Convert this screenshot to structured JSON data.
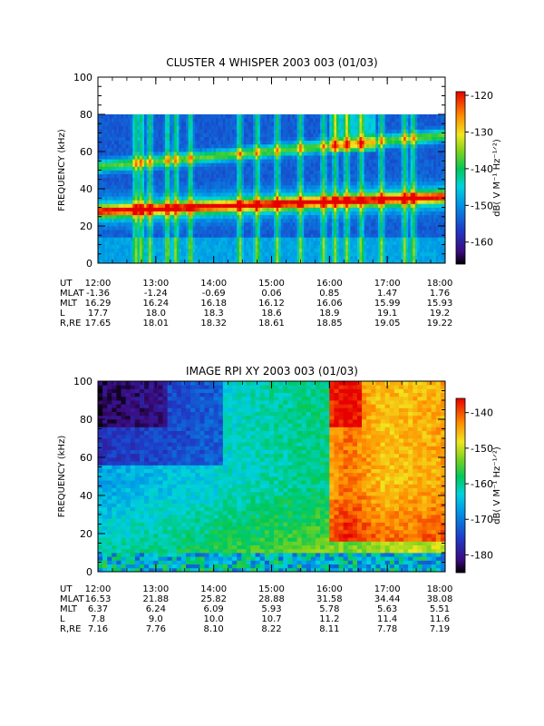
{
  "chart_data": [
    {
      "type": "heatmap",
      "title": "CLUSTER 4 WHISPER 2003 003 (01/03)",
      "ylabel": "FREQUENCY (kHz)",
      "ylim": [
        0,
        100
      ],
      "y_ticks": [
        "0",
        "20",
        "40",
        "60",
        "80",
        "100"
      ],
      "x_ticks": [
        "12:00",
        "13:00",
        "14:00",
        "15:00",
        "16:00",
        "17:00",
        "18:00"
      ],
      "data_max_frequency_khz": 80,
      "colorbar": {
        "label": "dB( V M⁻¹ Hz⁻¹ᐟ²)",
        "range": [
          -166,
          -119
        ],
        "ticks": [
          "-120",
          "-130",
          "-140",
          "-150",
          "-160"
        ]
      },
      "features": [
        {
          "label": "upper band",
          "x": [
            "12:00",
            "18:00"
          ],
          "y_khz": [
            52,
            68
          ]
        },
        {
          "label": "intense band",
          "x": [
            "12:00",
            "18:00"
          ],
          "y_khz": [
            27,
            36
          ]
        }
      ],
      "ephemeris": {
        "rows": [
          {
            "label": "UT",
            "values": [
              "12:00",
              "13:00",
              "14:00",
              "15:00",
              "16:00",
              "17:00",
              "18:00"
            ]
          },
          {
            "label": "MLAT",
            "values": [
              "-1.36",
              "-1.24",
              "-0.69",
              "0.06",
              "0.85",
              "1.47",
              "1.76"
            ]
          },
          {
            "label": "MLT",
            "values": [
              "16.29",
              "16.24",
              "16.18",
              "16.12",
              "16.06",
              "15.99",
              "15.93"
            ]
          },
          {
            "label": "L",
            "values": [
              "17.7",
              "18.0",
              "18.3",
              "18.6",
              "18.9",
              "19.1",
              "19.2"
            ]
          },
          {
            "label": "R,RE",
            "values": [
              "17.65",
              "18.01",
              "18.32",
              "18.61",
              "18.85",
              "19.05",
              "19.22"
            ]
          }
        ]
      }
    },
    {
      "type": "heatmap",
      "title": "IMAGE RPI XY 2003 003 (01/03)",
      "ylabel": "FREQUENCY (kHz)",
      "ylim": [
        0,
        100
      ],
      "y_ticks": [
        "0",
        "20",
        "40",
        "60",
        "80",
        "100"
      ],
      "x_ticks": [
        "12:00",
        "13:00",
        "14:00",
        "15:00",
        "16:00",
        "17:00",
        "18:00"
      ],
      "colorbar": {
        "label": "dB( V M⁻¹ Hz⁻¹ᐟ²)",
        "range": [
          -185,
          -136
        ],
        "ticks": [
          "-140",
          "-150",
          "-160",
          "-170",
          "-180"
        ]
      },
      "features": [
        {
          "label": "enhancement",
          "x": [
            "16:00",
            "18:00"
          ],
          "y_khz": [
            15,
            100
          ]
        }
      ],
      "ephemeris": {
        "rows": [
          {
            "label": "UT",
            "values": [
              "12:00",
              "13:00",
              "14:00",
              "15:00",
              "16:00",
              "17:00",
              "18:00"
            ]
          },
          {
            "label": "MLAT",
            "values": [
              "16.53",
              "21.88",
              "25.82",
              "28.88",
              "31.58",
              "34.44",
              "38.08"
            ]
          },
          {
            "label": "MLT",
            "values": [
              "6.37",
              "6.24",
              "6.09",
              "5.93",
              "5.78",
              "5.63",
              "5.51"
            ]
          },
          {
            "label": "L",
            "values": [
              "7.8",
              "9.0",
              "10.0",
              "10.7",
              "11.2",
              "11.4",
              "11.6"
            ]
          },
          {
            "label": "R,RE",
            "values": [
              "7.16",
              "7.76",
              "8.10",
              "8.22",
              "8.11",
              "7.78",
              "7.19"
            ]
          }
        ]
      }
    }
  ]
}
